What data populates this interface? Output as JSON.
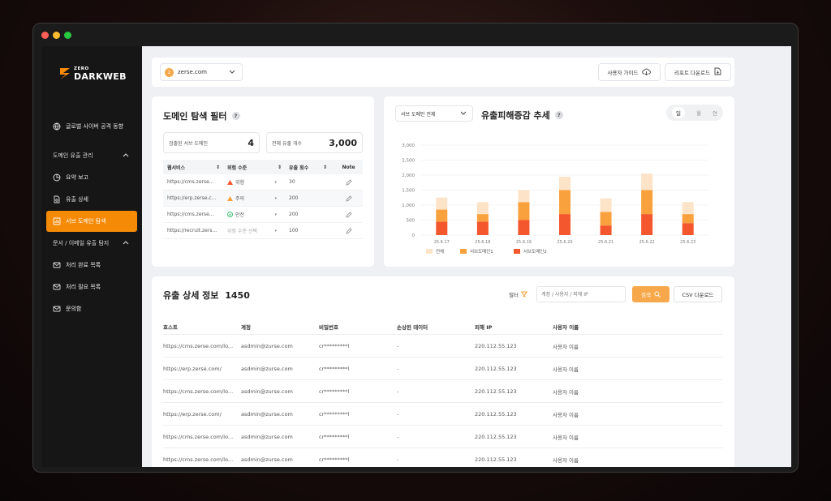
{
  "brand": {
    "small": "ZERO",
    "big": "DARKWEB"
  },
  "sidebar": {
    "items": [
      {
        "label": "글로벌 사이버 공격 동향"
      },
      {
        "label": "도메인 유출 관리"
      },
      {
        "label": "요약 보고"
      },
      {
        "label": "유출 상세"
      },
      {
        "label": "서브 도메인 탐색"
      },
      {
        "label": "문서 / 이메일 유출 탐지"
      },
      {
        "label": "처리 완료 목록"
      },
      {
        "label": "처리 필요 목록"
      },
      {
        "label": "문의함"
      }
    ]
  },
  "topbar": {
    "domain_initial": "z",
    "domain": "zerse.com",
    "guide_label": "사용자 가이드",
    "report_label": "리포트 다운로드"
  },
  "filter": {
    "title": "도메인 탐색 필터",
    "help": "?",
    "stat1_label": "검출된 서브 도메인",
    "stat1_value": "4",
    "stat2_label": "전체 유출 개수",
    "stat2_value": "3,000",
    "headers": [
      "웹서비스",
      "위험 수준",
      "유출 횟수",
      "Note"
    ],
    "rows": [
      {
        "url": "https://cms.zerse...",
        "risk": "위험",
        "count": "30"
      },
      {
        "url": "https://erp.zerse.c...",
        "risk": "주의",
        "count": "200"
      },
      {
        "url": "https://cms.zerse...",
        "risk": "안전",
        "count": "200"
      },
      {
        "url": "https://recruit.zers...",
        "risk": "위험 수준 선택",
        "count": "100"
      }
    ]
  },
  "trend": {
    "select": "서브 도메인 전체",
    "title": "유출피해증감 추세",
    "help": "?",
    "periods": [
      "일",
      "월",
      "연"
    ]
  },
  "chart_data": {
    "type": "bar",
    "stacked": true,
    "categories": [
      "25.6.17",
      "25.6.18",
      "25.6.19",
      "25.6.20",
      "25.6.21",
      "25.6.22",
      "25.6.23"
    ],
    "series": [
      {
        "name": "서브도메인2",
        "color": "#f4562d",
        "values": [
          450,
          450,
          500,
          700,
          320,
          700,
          400
        ]
      },
      {
        "name": "서브도메인1",
        "color": "#f9a23d",
        "values": [
          400,
          250,
          600,
          800,
          450,
          800,
          300
        ]
      },
      {
        "name": "전체",
        "color": "#fde3c7",
        "values": [
          400,
          400,
          400,
          450,
          450,
          550,
          400
        ]
      }
    ],
    "y_ticks": [
      "0",
      "500",
      "1,000",
      "1,500",
      "2,000",
      "2,500",
      "3,000"
    ],
    "ylim": [
      0,
      3000
    ],
    "legend": "bottom",
    "legend_order": [
      "전체",
      "서브도메인1",
      "서브도메인2"
    ]
  },
  "details": {
    "title": "유출 상세 정보",
    "count": "1450",
    "filter_label": "필터",
    "search_placeholder": "계정 / 사용자 / 피해 IP",
    "search_label": "검색",
    "csv_label": "CSV 다운로드",
    "headers": [
      "호스트",
      "계정",
      "비밀번호",
      "손상된 데이터",
      "피해 IP",
      "사용자 이름"
    ],
    "rows": [
      [
        "https://cms.zerse.com/lo...",
        "asdmin@zurse.com",
        "cr*********l",
        "-",
        "220.112.55.123",
        "사용자 이름"
      ],
      [
        "https://erp.zerse.com/",
        "asdmin@zurse.com",
        "cr*********l",
        "-",
        "220.112.55.123",
        "사용자 이름"
      ],
      [
        "https://cms.zerse.com/lo...",
        "asdmin@zurse.com",
        "cr*********l",
        "-",
        "220.112.55.123",
        "사용자 이름"
      ],
      [
        "https://erp.zerse.com/",
        "asdmin@zurse.com",
        "cr*********l",
        "-",
        "220.112.55.123",
        "사용자 이름"
      ],
      [
        "https://cms.zerse.com/lo...",
        "asdmin@zurse.com",
        "cr*********l",
        "-",
        "220.112.55.123",
        "사용자 이름"
      ],
      [
        "https://cms.zerse.com/lo...",
        "asdmin@zurse.com",
        "cr*********l",
        "-",
        "220.112.55.123",
        "사용자 이름"
      ]
    ]
  },
  "colors": {
    "accent": "#f58a07",
    "sidebar": "#161616",
    "danger": "#f4562d",
    "warning": "#f9a23d",
    "safe": "#2fbf71"
  }
}
